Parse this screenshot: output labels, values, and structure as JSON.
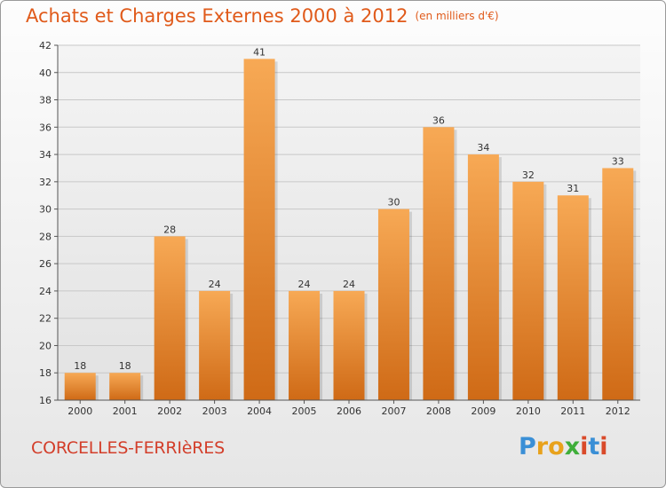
{
  "title": "Achats et Charges Externes 2000 à 2012",
  "subtitle": "(en milliers d'€)",
  "place": "CORCELLES-FERRIèRES",
  "logo": {
    "text": "Proxiti",
    "letters": [
      "P",
      "r",
      "o",
      "x",
      "i",
      "t",
      "i"
    ]
  },
  "colors": {
    "bar_light": "#f7a955",
    "bar_dark": "#cf6a16",
    "title": "#e05a1a",
    "place": "#d33e2a"
  },
  "chart_data": {
    "type": "bar",
    "categories": [
      "2000",
      "2001",
      "2002",
      "2003",
      "2004",
      "2005",
      "2006",
      "2007",
      "2008",
      "2009",
      "2010",
      "2011",
      "2012"
    ],
    "values": [
      18,
      18,
      28,
      24,
      41,
      24,
      24,
      30,
      36,
      34,
      32,
      31,
      33
    ],
    "ylim": [
      16,
      42
    ],
    "yticks": [
      16,
      18,
      20,
      22,
      24,
      26,
      28,
      30,
      32,
      34,
      36,
      38,
      40,
      42
    ],
    "grid": true,
    "xlabel": "",
    "ylabel": ""
  }
}
